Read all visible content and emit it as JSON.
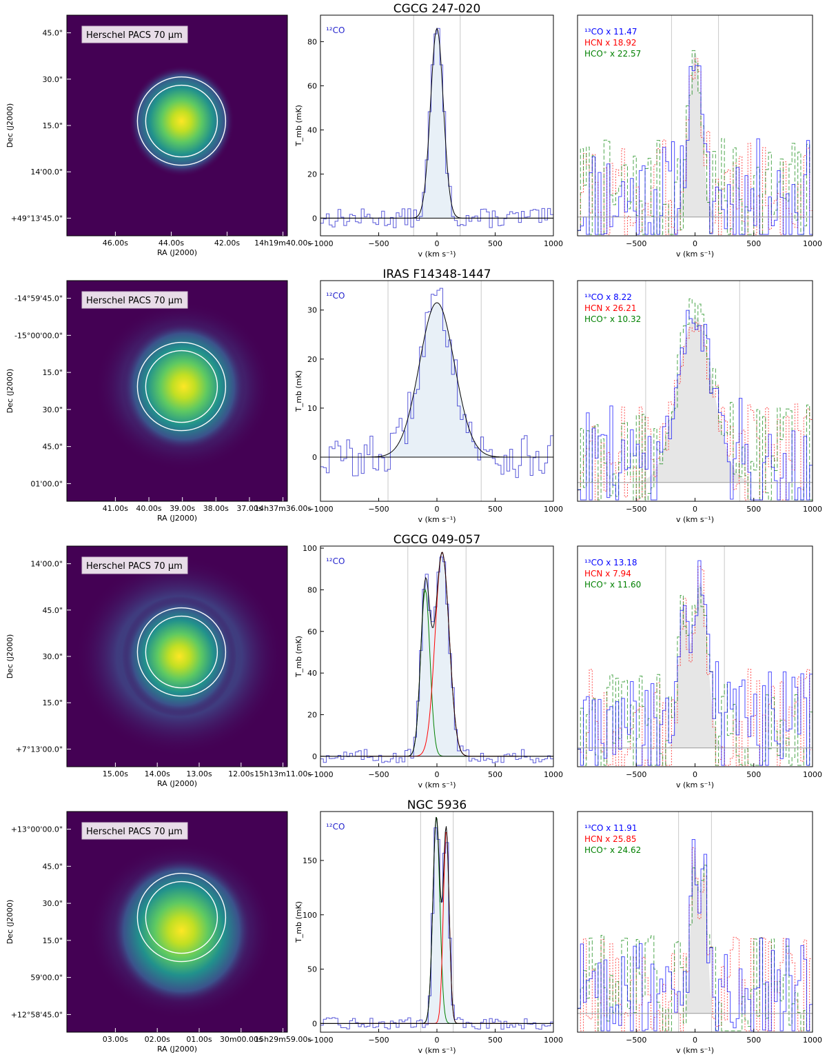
{
  "figure": {
    "map_badge": "Herschel PACS 70 μm",
    "ra_label": "RA (J2000)",
    "dec_label": "Dec (J2000)",
    "spec_ylabel": "T_mb (mK)",
    "spec_xlabel": "v (km s⁻¹)",
    "co12_label": "¹²CO",
    "colors": {
      "co12": "#2222cc",
      "co13": "#0000ff",
      "hcn": "#ff0000",
      "hcop": "#008000",
      "fit": "#000000",
      "fill": "#e8f0f7",
      "vline": "#c8c8c8",
      "map_bg": "#440154",
      "ring": "#ffffff"
    },
    "xlim": [
      -1000,
      1000
    ],
    "xticks": [
      -1000,
      -500,
      0,
      500,
      1000
    ],
    "xtick_labels": [
      "−1000",
      "−500",
      "0",
      "500",
      "1000"
    ]
  },
  "chart_data": [
    {
      "type": "image+line",
      "title": "CGCG 247-020",
      "map": {
        "dec_ticks": [
          "45.0\"",
          "30.0\"",
          "15.0\"",
          "14'00.0\"",
          "+49°13'45.0\""
        ],
        "ra_ticks": [
          "46.00s",
          "44.00s",
          "42.00s",
          "14h19m40.00s"
        ],
        "source": {
          "cx": 0.52,
          "cy": 0.48,
          "size": 0.12,
          "halo": 0.0
        }
      },
      "spectrum": {
        "ylim": [
          -8,
          92
        ],
        "yticks": [
          0,
          20,
          40,
          60,
          80
        ],
        "vlines": [
          -200,
          200
        ],
        "components": [
          {
            "amp": 86,
            "center": 0,
            "sigma": 55,
            "color": "fit"
          }
        ],
        "noise_rms": 4
      },
      "lines_panel": {
        "co13_factor": "¹³CO x 11.47",
        "hcn_factor": "HCN x 18.92",
        "hcop_factor": "HCO⁺ x 22.57",
        "vlines": [
          -200,
          200
        ]
      }
    },
    {
      "type": "image+line",
      "title": "IRAS F14348-1447",
      "map": {
        "dec_ticks": [
          "-14°59'45.0\"",
          "-15°00'00.0\"",
          "15.0\"",
          "30.0\"",
          "45.0\"",
          "01'00.0\""
        ],
        "ra_ticks": [
          "41.00s",
          "40.00s",
          "39.00s",
          "38.00s",
          "37.00s",
          "14h37m36.00s"
        ],
        "source": {
          "cx": 0.53,
          "cy": 0.48,
          "size": 0.14,
          "halo": 0.3
        }
      },
      "spectrum": {
        "ylim": [
          -9,
          36
        ],
        "yticks": [
          0,
          10,
          20,
          30
        ],
        "vlines": [
          -420,
          380
        ],
        "components": [
          {
            "amp": 31.5,
            "center": 0,
            "sigma": 150,
            "color": "fit"
          }
        ],
        "noise_rms": 4
      },
      "lines_panel": {
        "co13_factor": "¹³CO x 8.22",
        "hcn_factor": "HCN x 26.21",
        "hcop_factor": "HCO⁺ x 10.32",
        "vlines": [
          -420,
          380
        ]
      }
    },
    {
      "type": "image+line",
      "title": "CGCG 049-057",
      "map": {
        "dec_ticks": [
          "14'00.0\"",
          "45.0\"",
          "30.0\"",
          "15.0\"",
          "+7°13'00.0\""
        ],
        "ra_ticks": [
          "15.00s",
          "14.00s",
          "13.00s",
          "12.00s",
          "15h13m11.00s"
        ],
        "source": {
          "cx": 0.51,
          "cy": 0.5,
          "size": 0.13,
          "halo": 0.5
        }
      },
      "spectrum": {
        "ylim": [
          -5,
          101
        ],
        "yticks": [
          0,
          20,
          40,
          60,
          80,
          100
        ],
        "vlines": [
          -250,
          250
        ],
        "components": [
          {
            "amp": 80,
            "center": -100,
            "sigma": 40,
            "color": "hcop"
          },
          {
            "amp": 98,
            "center": 45,
            "sigma": 60,
            "color": "hcn"
          }
        ],
        "noise_rms": 3
      },
      "lines_panel": {
        "co13_factor": "¹³CO x 13.18",
        "hcn_factor": "HCN x 7.94",
        "hcop_factor": "HCO⁺ x 11.60",
        "vlines": [
          -250,
          250
        ]
      }
    },
    {
      "type": "image+line",
      "title": "NGC 5936",
      "map": {
        "dec_ticks": [
          "+13°00'00.0\"",
          "45.0\"",
          "30.0\"",
          "15.0\"",
          "59'00.0\"",
          "+12°58'45.0\""
        ],
        "ra_ticks": [
          "03.00s",
          "02.00s",
          "01.00s",
          "30m00.00s",
          "15h29m59.00s"
        ],
        "source": {
          "cx": 0.52,
          "cy": 0.54,
          "size": 0.16,
          "halo": 0.35
        }
      },
      "spectrum": {
        "ylim": [
          -8,
          195
        ],
        "yticks": [
          0,
          50,
          100,
          150
        ],
        "vlines": [
          -140,
          140
        ],
        "components": [
          {
            "amp": 190,
            "center": -5,
            "sigma": 30,
            "color": "hcop"
          },
          {
            "amp": 178,
            "center": 80,
            "sigma": 25,
            "color": "hcn"
          }
        ],
        "noise_rms": 5
      },
      "lines_panel": {
        "co13_factor": "¹³CO x 11.91",
        "hcn_factor": "HCN x 25.85",
        "hcop_factor": "HCO⁺ x 24.62",
        "vlines": [
          -140,
          140
        ]
      }
    }
  ]
}
